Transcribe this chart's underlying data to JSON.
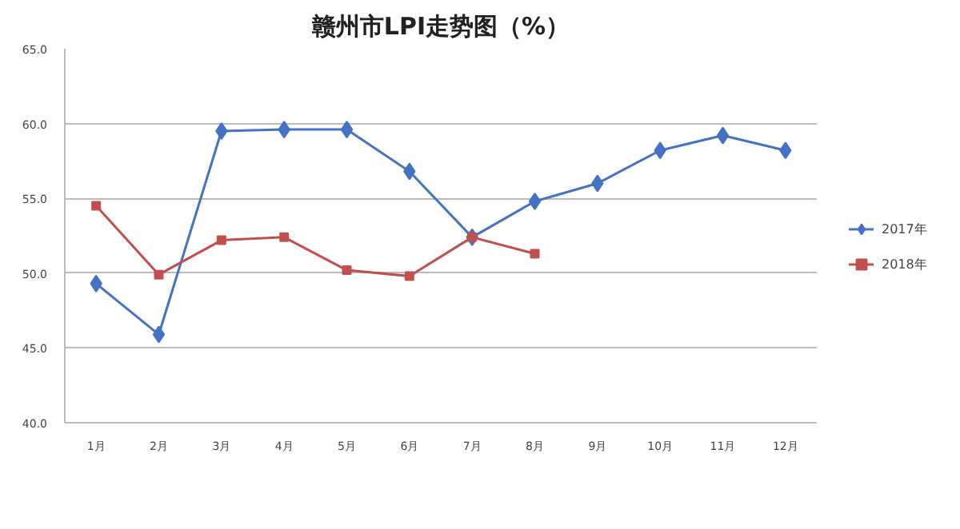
{
  "chart_data": {
    "type": "line",
    "title": "赣州市LPI走势图（%）",
    "categories": [
      "1月",
      "2月",
      "3月",
      "4月",
      "5月",
      "6月",
      "7月",
      "8月",
      "9月",
      "10月",
      "11月",
      "12月"
    ],
    "series": [
      {
        "name": "2017年",
        "color": "#4472c4",
        "marker": "diamond",
        "values": [
          49.3,
          45.9,
          59.5,
          59.6,
          59.6,
          56.8,
          52.4,
          54.8,
          56.0,
          58.2,
          59.2,
          58.2
        ]
      },
      {
        "name": "2018年",
        "color": "#c0504d",
        "marker": "square",
        "values": [
          54.5,
          49.9,
          52.2,
          52.4,
          50.2,
          49.8,
          52.4,
          51.3,
          null,
          null,
          null,
          null
        ]
      }
    ],
    "ylim": [
      40,
      65
    ],
    "yticks": [
      {
        "value": 40,
        "label": "40.0"
      },
      {
        "value": 45,
        "label": "45.0"
      },
      {
        "value": 50,
        "label": "50.0"
      },
      {
        "value": 55,
        "label": "55.0"
      },
      {
        "value": 60,
        "label": "60.0"
      },
      {
        "value": 65,
        "label": "65.0"
      }
    ],
    "grid": "y",
    "legend": "right",
    "line_style": "solid"
  }
}
